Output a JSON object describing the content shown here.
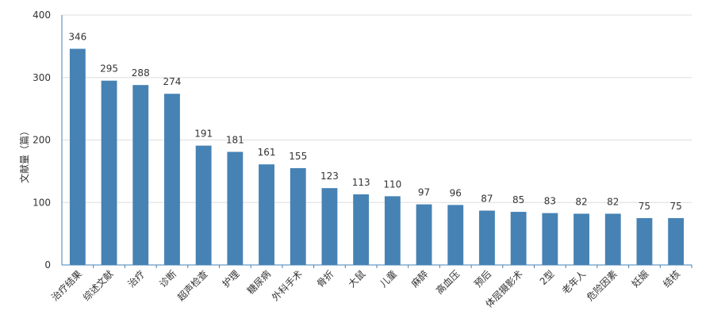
{
  "chart_data": {
    "type": "bar",
    "ylabel": "文献量（篇）",
    "ylim": [
      0,
      400
    ],
    "yticks": [
      0,
      100,
      200,
      300,
      400
    ],
    "grid": true,
    "bar_color": "#4682b4",
    "categories": [
      "治疗结果",
      "综述文献",
      "治疗",
      "诊断",
      "超声检查",
      "护理",
      "糖尿病",
      "外科手术",
      "骨折",
      "大鼠",
      "儿童",
      "麻醉",
      "高血压",
      "预后",
      "体层摄影术",
      "2型",
      "老年人",
      "危险因素",
      "妊娠",
      "结核"
    ],
    "values": [
      346,
      295,
      288,
      274,
      191,
      181,
      161,
      155,
      123,
      113,
      110,
      97,
      96,
      87,
      85,
      83,
      82,
      82,
      75,
      75
    ],
    "tick_labels": [
      "0",
      "100",
      "200",
      "300",
      "400"
    ],
    "value_labels": [
      "346",
      "295",
      "288",
      "274",
      "191",
      "181",
      "161",
      "155",
      "123",
      "113",
      "110",
      "97",
      "96",
      "87",
      "85",
      "83",
      "82",
      "82",
      "75",
      "75"
    ]
  }
}
